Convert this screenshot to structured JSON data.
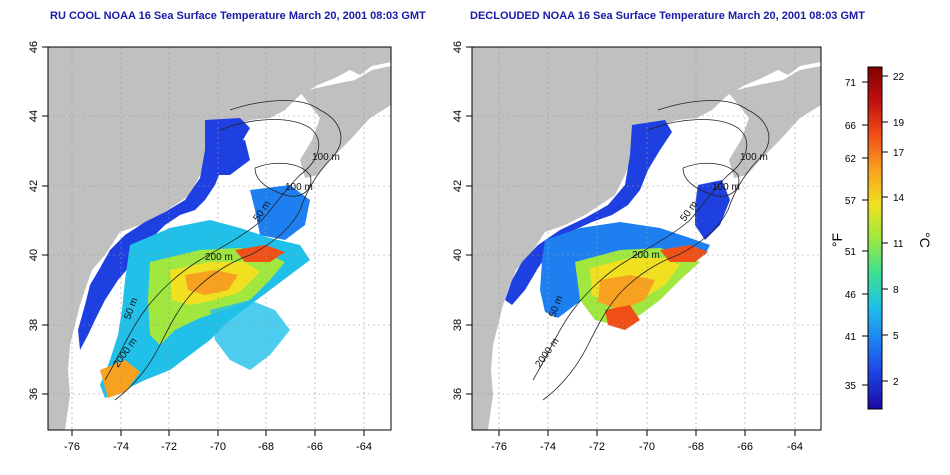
{
  "panels": [
    {
      "title": "RU COOL NOAA 16 Sea Surface Temperature March 20, 2001 08:03 GMT",
      "contour_labels": [
        "100 m",
        "100 m",
        "50 m",
        "200 m",
        "50 m",
        "2000 m"
      ]
    },
    {
      "title": "DECLOUDED NOAA 16 Sea Surface Temperature March 20, 2001 08:03 GMT",
      "contour_labels": [
        "100 m",
        "100 m",
        "50 m",
        "200 m",
        "50 m",
        "2000 m"
      ]
    }
  ],
  "axes": {
    "lon_ticks": [
      "-76",
      "-74",
      "-72",
      "-70",
      "-68",
      "-66",
      "-64"
    ],
    "lat_ticks": [
      "46",
      "44",
      "42",
      "40",
      "38",
      "36"
    ]
  },
  "colorbar": {
    "unit_f": "°F",
    "unit_c": "°C",
    "f_ticks": [
      "71",
      "66",
      "62",
      "57",
      "51",
      "46",
      "41",
      "35"
    ],
    "c_ticks": [
      "22",
      "19",
      "17",
      "14",
      "11",
      "8",
      "5",
      "2"
    ],
    "colors": [
      "#1a0aa0",
      "#1e40e0",
      "#1e80f0",
      "#20c0e8",
      "#40e090",
      "#a0e840",
      "#f0e020",
      "#f8a020",
      "#f05018",
      "#c01010",
      "#800000"
    ]
  },
  "land_color": "#c0c0c0",
  "grid": true
}
